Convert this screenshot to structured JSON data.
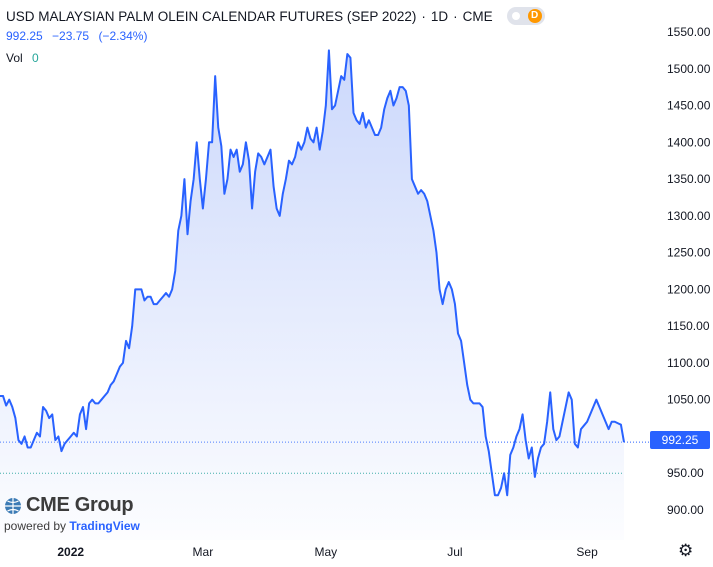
{
  "legend": {
    "symbol_title": "USD MALAYSIAN PALM OLEIN CALENDAR FUTURES (SEP 2022)",
    "interval": "1D",
    "exchange": "CME",
    "toggle_letter": "D",
    "last": "992.25",
    "change": "−23.75",
    "change_pct": "(−2.34%)",
    "vol_label": "Vol",
    "vol_value": "0"
  },
  "branding": {
    "logo_text": "CME Group",
    "powered_by": "powered by",
    "tradingview": "TradingView"
  },
  "last_price_label": "992.25",
  "colors": {
    "line": "#2962ff",
    "area_top": "#c9d6fb",
    "accent": "#2962ff",
    "volume": "#26a69a",
    "toggle": "#ff9800"
  },
  "chart_data": {
    "type": "area",
    "title": "USD MALAYSIAN PALM OLEIN CALENDAR FUTURES (SEP 2022)",
    "xlabel": "",
    "ylabel": "",
    "ylim": [
      877.5,
      1577.5
    ],
    "grid": false,
    "y_ticks": [
      "1550.00",
      "1500.00",
      "1450.00",
      "1400.00",
      "1350.00",
      "1300.00",
      "1250.00",
      "1200.00",
      "1150.00",
      "1100.00",
      "1050.00",
      "1000.00",
      "950.00",
      "900.00"
    ],
    "y_tick_values": [
      1550,
      1500,
      1450,
      1400,
      1350,
      1300,
      1250,
      1200,
      1150,
      1100,
      1050,
      1000,
      950,
      900
    ],
    "x_ticks": [
      "2022",
      "Mar",
      "May",
      "Jul",
      "Sep"
    ],
    "x_tick_index": [
      23,
      66,
      106,
      148,
      191
    ],
    "reference_lines": [
      992.25,
      950
    ],
    "series": [
      {
        "values": [
          1055,
          1055,
          1042,
          1050,
          1040,
          1025,
          995,
          990,
          1000,
          985,
          985,
          995,
          1005,
          1000,
          1040,
          1035,
          1025,
          1030,
          995,
          1000,
          980,
          990,
          995,
          1000,
          1005,
          1000,
          1030,
          1040,
          1010,
          1045,
          1050,
          1045,
          1045,
          1050,
          1055,
          1060,
          1070,
          1075,
          1085,
          1095,
          1100,
          1130,
          1120,
          1150,
          1200,
          1200,
          1200,
          1185,
          1190,
          1190,
          1180,
          1180,
          1185,
          1190,
          1195,
          1190,
          1200,
          1225,
          1280,
          1300,
          1350,
          1275,
          1320,
          1350,
          1400,
          1350,
          1310,
          1350,
          1400,
          1400,
          1490,
          1420,
          1395,
          1330,
          1350,
          1390,
          1380,
          1390,
          1360,
          1370,
          1400,
          1375,
          1310,
          1360,
          1385,
          1380,
          1370,
          1380,
          1390,
          1340,
          1310,
          1300,
          1330,
          1350,
          1375,
          1370,
          1380,
          1400,
          1390,
          1400,
          1420,
          1405,
          1400,
          1420,
          1390,
          1415,
          1450,
          1525,
          1445,
          1450,
          1470,
          1490,
          1485,
          1520,
          1515,
          1440,
          1430,
          1425,
          1440,
          1420,
          1430,
          1420,
          1410,
          1410,
          1420,
          1445,
          1460,
          1470,
          1450,
          1460,
          1475,
          1475,
          1470,
          1450,
          1350,
          1340,
          1330,
          1335,
          1330,
          1320,
          1300,
          1280,
          1250,
          1200,
          1180,
          1200,
          1210,
          1200,
          1180,
          1140,
          1130,
          1100,
          1070,
          1050,
          1045,
          1045,
          1045,
          1040,
          1000,
          980,
          950,
          920,
          920,
          930,
          950,
          920,
          975,
          985,
          1000,
          1010,
          1030,
          995,
          970,
          985,
          945,
          970,
          985,
          990,
          1020,
          1060,
          1010,
          995,
          1000,
          1020,
          1040,
          1060,
          1050,
          990,
          985,
          1010,
          1015,
          1020,
          1030,
          1040,
          1050,
          1040,
          1030,
          1020,
          1010,
          1020,
          1020,
          1018,
          1016,
          992.25
        ]
      }
    ]
  }
}
